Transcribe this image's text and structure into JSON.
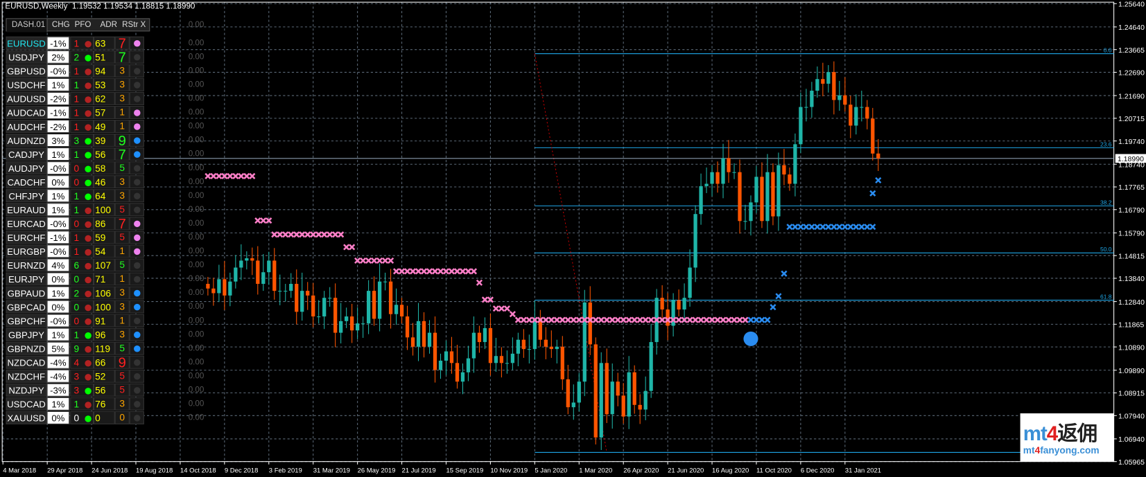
{
  "window": {
    "symbol_timeframe": "EURUSD,Weekly",
    "ohlc": "1.19532 1.19534 1.18815 1.18990"
  },
  "colors": {
    "bull": "#1fb5a8",
    "bear": "#ff5500",
    "grid": "#5c6a78",
    "fib": "#1ea7e8",
    "pink_marks": "#ff7fc8",
    "blue_marks": "#2a8cf0",
    "price_line": "#8899aa"
  },
  "dashboard": {
    "title": "DASH.01",
    "columns": [
      "CHG",
      "PFO",
      "ADR",
      "RStr",
      "X"
    ],
    "header_value": "0.00",
    "rows": [
      {
        "pair": "EURUSD",
        "chg": "-1%",
        "pfo": "1",
        "pfo_color": "#ff2020",
        "dot": "#b22222",
        "adr": "63",
        "rstr": "7",
        "rstr_color": "#ff2020",
        "rstr_big": true,
        "x": "#ee82ee",
        "value": "0.00",
        "highlight": true
      },
      {
        "pair": "USDJPY",
        "chg": "2%",
        "pfo": "2",
        "pfo_color": "#20ff20",
        "dot": "#00ff00",
        "adr": "51",
        "rstr": "7",
        "rstr_color": "#20ff20",
        "rstr_big": true,
        "x": "#333333",
        "value": "0.00"
      },
      {
        "pair": "GBPUSD",
        "chg": "-0%",
        "pfo": "1",
        "pfo_color": "#ff2020",
        "dot": "#b22222",
        "adr": "94",
        "rstr": "3",
        "rstr_color": "#ffa500",
        "x": "#333333",
        "value": "0.00"
      },
      {
        "pair": "USDCHF",
        "chg": "1%",
        "pfo": "1",
        "pfo_color": "#20ff20",
        "dot": "#b22222",
        "adr": "53",
        "rstr": "3",
        "rstr_color": "#ffa500",
        "x": "#333333",
        "value": "0.00"
      },
      {
        "pair": "AUDUSD",
        "chg": "-2%",
        "pfo": "1",
        "pfo_color": "#ff2020",
        "dot": "#b22222",
        "adr": "62",
        "rstr": "3",
        "rstr_color": "#ffa500",
        "x": "#333333",
        "value": "0.00"
      },
      {
        "pair": "AUDCAD",
        "chg": "-1%",
        "pfo": "1",
        "pfo_color": "#ff2020",
        "dot": "#b22222",
        "adr": "57",
        "rstr": "1",
        "rstr_color": "#ffa500",
        "x": "#ee82ee",
        "value": "0.00"
      },
      {
        "pair": "AUDCHF",
        "chg": "-2%",
        "pfo": "1",
        "pfo_color": "#ff2020",
        "dot": "#b22222",
        "adr": "49",
        "rstr": "1",
        "rstr_color": "#ffa500",
        "x": "#ee82ee",
        "value": "0.00"
      },
      {
        "pair": "AUDNZD",
        "chg": "3%",
        "pfo": "3",
        "pfo_color": "#20ff20",
        "dot": "#00ff00",
        "adr": "39",
        "rstr": "9",
        "rstr_color": "#20ff20",
        "rstr_big": true,
        "x": "#1e90ff",
        "value": "0.00"
      },
      {
        "pair": "CADJPY",
        "chg": "1%",
        "pfo": "1",
        "pfo_color": "#20ff20",
        "dot": "#00ff00",
        "adr": "56",
        "rstr": "7",
        "rstr_color": "#20ff20",
        "rstr_big": true,
        "x": "#1e90ff",
        "value": "0.00"
      },
      {
        "pair": "AUDJPY",
        "chg": "-0%",
        "pfo": "0",
        "pfo_color": "#ff2020",
        "dot": "#00ff00",
        "adr": "58",
        "rstr": "5",
        "rstr_color": "#20ff20",
        "x": "#333333",
        "value": "0.00"
      },
      {
        "pair": "CADCHF",
        "chg": "0%",
        "pfo": "0",
        "pfo_color": "#ff2020",
        "dot": "#00ff00",
        "adr": "46",
        "rstr": "3",
        "rstr_color": "#ffa500",
        "x": "#333333",
        "value": "0.00"
      },
      {
        "pair": "CHFJPY",
        "chg": "1%",
        "pfo": "1",
        "pfo_color": "#20ff20",
        "dot": "#00ff00",
        "adr": "64",
        "rstr": "3",
        "rstr_color": "#ffa500",
        "x": "#333333",
        "value": "0.00"
      },
      {
        "pair": "EURAUD",
        "chg": "1%",
        "pfo": "1",
        "pfo_color": "#20ff20",
        "dot": "#b22222",
        "adr": "100",
        "rstr": "5",
        "rstr_color": "#ff2020",
        "x": "#333333",
        "value": "0.00"
      },
      {
        "pair": "EURCAD",
        "chg": "-0%",
        "pfo": "0",
        "pfo_color": "#ff2020",
        "dot": "#b22222",
        "adr": "86",
        "rstr": "7",
        "rstr_color": "#ff2020",
        "rstr_big": true,
        "x": "#ee82ee",
        "value": "0.00"
      },
      {
        "pair": "EURCHF",
        "chg": "-1%",
        "pfo": "1",
        "pfo_color": "#ff2020",
        "dot": "#b22222",
        "adr": "59",
        "rstr": "5",
        "rstr_color": "#ff2020",
        "x": "#ee82ee",
        "value": "0.00"
      },
      {
        "pair": "EURGBP",
        "chg": "-0%",
        "pfo": "1",
        "pfo_color": "#ff2020",
        "dot": "#b22222",
        "adr": "54",
        "rstr": "1",
        "rstr_color": "#ffa500",
        "x": "#ee82ee",
        "value": "0.00"
      },
      {
        "pair": "EURNZD",
        "chg": "4%",
        "pfo": "6",
        "pfo_color": "#20ff20",
        "dot": "#b22222",
        "adr": "107",
        "rstr": "5",
        "rstr_color": "#20ff20",
        "x": "#333333",
        "value": "0.00"
      },
      {
        "pair": "EURJPY",
        "chg": "0%",
        "pfo": "0",
        "pfo_color": "#20ff20",
        "dot": "#b22222",
        "adr": "71",
        "rstr": "1",
        "rstr_color": "#ffa500",
        "x": "#333333",
        "value": "0.00"
      },
      {
        "pair": "GBPAUD",
        "chg": "1%",
        "pfo": "2",
        "pfo_color": "#20ff20",
        "dot": "#b22222",
        "adr": "106",
        "rstr": "3",
        "rstr_color": "#ffa500",
        "x": "#1e90ff",
        "value": "0.00"
      },
      {
        "pair": "GBPCAD",
        "chg": "0%",
        "pfo": "0",
        "pfo_color": "#20ff20",
        "dot": "#b22222",
        "adr": "100",
        "rstr": "3",
        "rstr_color": "#ffa500",
        "x": "#1e90ff",
        "value": "0.00"
      },
      {
        "pair": "GBPCHF",
        "chg": "-0%",
        "pfo": "0",
        "pfo_color": "#ff2020",
        "dot": "#b22222",
        "adr": "91",
        "rstr": "1",
        "rstr_color": "#ffa500",
        "x": "#333333",
        "value": "0.00"
      },
      {
        "pair": "GBPJPY",
        "chg": "1%",
        "pfo": "1",
        "pfo_color": "#20ff20",
        "dot": "#00ff00",
        "adr": "96",
        "rstr": "3",
        "rstr_color": "#ffa500",
        "x": "#1e90ff",
        "value": "0.00"
      },
      {
        "pair": "GBPNZD",
        "chg": "5%",
        "pfo": "9",
        "pfo_color": "#20ff20",
        "dot": "#b22222",
        "adr": "119",
        "rstr": "5",
        "rstr_color": "#20ff20",
        "x": "#1e90ff",
        "value": "0.00"
      },
      {
        "pair": "NZDCAD",
        "chg": "-4%",
        "pfo": "4",
        "pfo_color": "#ff2020",
        "dot": "#b22222",
        "adr": "66",
        "rstr": "9",
        "rstr_color": "#ff2020",
        "rstr_big": true,
        "x": "#333333",
        "value": "0.00"
      },
      {
        "pair": "NZDCHF",
        "chg": "-4%",
        "pfo": "3",
        "pfo_color": "#ff2020",
        "dot": "#b22222",
        "adr": "52",
        "rstr": "5",
        "rstr_color": "#ff2020",
        "x": "#333333",
        "value": "0.00"
      },
      {
        "pair": "NZDJPY",
        "chg": "-3%",
        "pfo": "3",
        "pfo_color": "#ff2020",
        "dot": "#00ff00",
        "adr": "56",
        "rstr": "5",
        "rstr_color": "#ff2020",
        "x": "#333333",
        "value": "0.00"
      },
      {
        "pair": "USDCAD",
        "chg": "1%",
        "pfo": "1",
        "pfo_color": "#20ff20",
        "dot": "#b22222",
        "adr": "76",
        "rstr": "3",
        "rstr_color": "#ffa500",
        "x": "#333333",
        "value": "0.00"
      },
      {
        "pair": "XAUUSD",
        "chg": "0%",
        "pfo": "0",
        "pfo_color": "#ffffff",
        "dot": "#00ff00",
        "adr": "0",
        "rstr": "0",
        "rstr_color": "#ffa500",
        "x": "#333333",
        "value": "0.00"
      }
    ]
  },
  "chart_data": {
    "type": "candlestick",
    "symbol": "EURUSD",
    "timeframe": "Weekly",
    "first_bar_date": "2018-11-18",
    "closes": [
      1.134,
      1.132,
      1.138,
      1.131,
      1.137,
      1.143,
      1.146,
      1.147,
      1.146,
      1.136,
      1.141,
      1.146,
      1.133,
      1.133,
      1.133,
      1.136,
      1.124,
      1.133,
      1.131,
      1.122,
      1.122,
      1.13,
      1.13,
      1.115,
      1.12,
      1.122,
      1.116,
      1.119,
      1.119,
      1.133,
      1.121,
      1.137,
      1.137,
      1.123,
      1.127,
      1.122,
      1.113,
      1.109,
      1.12,
      1.109,
      1.115,
      1.099,
      1.103,
      1.107,
      1.102,
      1.094,
      1.098,
      1.104,
      1.115,
      1.111,
      1.117,
      1.102,
      1.105,
      1.102,
      1.102,
      1.106,
      1.112,
      1.108,
      1.108,
      1.121,
      1.112,
      1.109,
      1.108,
      1.109,
      1.095,
      1.083,
      1.085,
      1.094,
      1.128,
      1.11,
      1.07,
      1.102,
      1.08,
      1.094,
      1.088,
      1.079,
      1.098,
      1.084,
      1.082,
      1.09,
      1.111,
      1.13,
      1.125,
      1.118,
      1.129,
      1.125,
      1.13,
      1.143,
      1.166,
      1.178,
      1.179,
      1.184,
      1.179,
      1.19,
      1.184,
      1.184,
      1.163,
      1.163,
      1.171,
      1.182,
      1.163,
      1.184,
      1.165,
      1.187,
      1.183,
      1.179,
      1.196,
      1.212,
      1.212,
      1.219,
      1.224,
      1.222,
      1.227,
      1.215,
      1.217,
      1.213,
      1.204,
      1.212,
      1.212,
      1.207,
      1.192,
      1.1899
    ],
    "current_price": 1.1899,
    "y_ticks": [
      1.2564,
      1.2464,
      1.23665,
      1.2269,
      1.2169,
      1.20715,
      1.1974,
      1.1874,
      1.17765,
      1.1679,
      1.1579,
      1.14815,
      1.1384,
      1.1284,
      1.11865,
      1.1089,
      1.0989,
      1.08915,
      1.0794,
      1.0694,
      1.05965
    ],
    "ylim": [
      1.05965,
      1.2564
    ],
    "x_ticks": [
      "4 Mar 2018",
      "29 Apr 2018",
      "24 Jun 2018",
      "19 Aug 2018",
      "14 Oct 2018",
      "9 Dec 2018",
      "3 Feb 2019",
      "31 Mar 2019",
      "26 May 2019",
      "21 Jul 2019",
      "15 Sep 2019",
      "10 Nov 2019",
      "5 Jan 2020",
      "1 Mar 2020",
      "26 Apr 2020",
      "21 Jun 2020",
      "16 Aug 2020",
      "11 Oct 2020",
      "6 Dec 2020",
      "31 Jan 2021"
    ],
    "x_start_date": "2018-03-04",
    "grid": true,
    "fibonacci": {
      "start_date": "2020-01-05",
      "levels": [
        {
          "label": "0.0",
          "price": 1.2349
        },
        {
          "label": "23.6",
          "price": 1.1945
        },
        {
          "label": "38.2",
          "price": 1.1695
        },
        {
          "label": "50.0",
          "price": 1.1493
        },
        {
          "label": "61.8",
          "price": 1.129
        },
        {
          "label": "100.0",
          "price": 1.0636
        }
      ],
      "trend_line": {
        "from_date": "2020-01-05",
        "from_price": 1.2349,
        "to_date": "2020-04-05",
        "to_price": 1.0636
      }
    },
    "pink_marks": [
      {
        "from": "2018-11-18",
        "to": "2019-01-13",
        "price": 1.1823
      },
      {
        "from": "2019-01-20",
        "to": "2019-02-03",
        "price": 1.1632
      },
      {
        "from": "2019-02-10",
        "to": "2019-05-05",
        "price": 1.1572
      },
      {
        "from": "2019-05-12",
        "to": "2019-05-19",
        "price": 1.1518
      },
      {
        "from": "2019-05-26",
        "to": "2019-07-07",
        "price": 1.146
      },
      {
        "from": "2019-07-14",
        "to": "2019-10-20",
        "price": 1.1414
      },
      {
        "from": "2019-10-27",
        "to": "2019-10-27",
        "price": 1.1365
      },
      {
        "from": "2019-11-03",
        "to": "2019-11-10",
        "price": 1.1292
      },
      {
        "from": "2019-11-17",
        "to": "2019-12-01",
        "price": 1.1254
      },
      {
        "from": "2019-12-08",
        "to": "2019-12-08",
        "price": 1.123
      },
      {
        "from": "2019-12-15",
        "to": "2020-09-27",
        "price": 1.1205
      }
    ],
    "blue_marks": [
      {
        "from": "2020-10-04",
        "to": "2020-10-25",
        "price": 1.1205
      },
      {
        "from": "2020-11-01",
        "to": "2020-11-01",
        "price": 1.126
      },
      {
        "from": "2020-11-08",
        "to": "2020-11-08",
        "price": 1.1307
      },
      {
        "from": "2020-11-15",
        "to": "2020-11-15",
        "price": 1.1404
      },
      {
        "from": "2020-11-22",
        "to": "2021-03-07",
        "price": 1.1605
      },
      {
        "from": "2021-03-07",
        "to": "2021-03-07",
        "price": 1.1749
      },
      {
        "from": "2021-03-14",
        "to": "2021-03-14",
        "price": 1.1805
      }
    ],
    "blue_circle": {
      "date": "2020-10-04",
      "price": 1.1124
    }
  },
  "logo": {
    "brand": "mt4返佣",
    "site": "mt4fanyong.com"
  }
}
